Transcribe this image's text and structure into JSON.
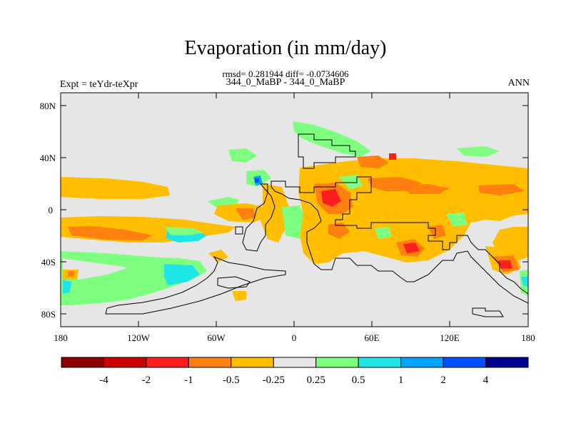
{
  "title": "Evaporation (in mm/day)",
  "subtitle_stats": "rmsd= 0.281944 diff= -0.0734606",
  "subtitle_cases": "344_0_MaBP - 344_0_MaBP",
  "left_label": "Expt = teYdr-teXpr",
  "right_label": "ANN",
  "y_ticks": [
    "80N",
    "40N",
    "0",
    "40S",
    "80S"
  ],
  "x_ticks": [
    "180",
    "120W",
    "60W",
    "0",
    "60E",
    "120E",
    "180"
  ],
  "colorbar": {
    "colors": [
      "#8c0000",
      "#cc0000",
      "#ff1e1e",
      "#ff7f0f",
      "#ffbf00",
      "#e6e6e6",
      "#7fff7f",
      "#1ee6e6",
      "#00a5ff",
      "#0050ff",
      "#00008c"
    ],
    "labels": [
      "-4",
      "-2",
      "-1",
      "-0.5",
      "-0.25",
      "0.25",
      "0.5",
      "1",
      "2",
      "4"
    ]
  },
  "colors": {
    "background": "#e6e6e6",
    "orange": "#ffbf00",
    "dark_orange": "#ff7f0f",
    "red": "#ff1e1e",
    "green": "#7fff7f",
    "cyan": "#1ee6e6",
    "blue": "#0050ff"
  }
}
